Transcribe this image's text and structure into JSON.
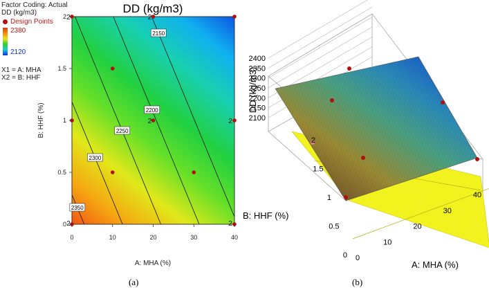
{
  "legend": {
    "factor_coding": "Factor Coding: Actual",
    "response_label": "DD (kg/m3)",
    "design_points_label": "Design Points",
    "high_value": "2380",
    "low_value": "2120",
    "x1_def": "X1 = A: MHA",
    "x2_def": "X2 = B: HHF"
  },
  "captions": {
    "left": "(a)",
    "right": "(b)"
  },
  "colors": {
    "high": "#e8401a",
    "mid": "#22d322",
    "low": "#1060e8",
    "point": "#b01010"
  },
  "chart_data": [
    {
      "type": "contour",
      "title": "DD (kg/m3)",
      "xlabel": "A: MHA (%)",
      "ylabel": "B: HHF (%)",
      "xlim": [
        0,
        40
      ],
      "ylim": [
        0,
        2
      ],
      "x_ticks": [
        "0",
        "10",
        "20",
        "30",
        "40"
      ],
      "y_ticks": [
        "0",
        "0.5",
        "1",
        "1.5",
        "2"
      ],
      "response_range": [
        2120,
        2380
      ],
      "contour_levels": [
        {
          "value": 2150,
          "label": "2150"
        },
        {
          "value": 2200,
          "label": "2200"
        },
        {
          "value": 2250,
          "label": "2250"
        },
        {
          "value": 2300,
          "label": "2300"
        },
        {
          "value": 2350,
          "label": "2350"
        }
      ],
      "design_points": [
        {
          "x": 0,
          "y": 0,
          "count": "2"
        },
        {
          "x": 40,
          "y": 0,
          "count": "2"
        },
        {
          "x": 0,
          "y": 2,
          "count": "2"
        },
        {
          "x": 40,
          "y": 2,
          "count": ""
        },
        {
          "x": 20,
          "y": 2,
          "count": "2"
        },
        {
          "x": 0,
          "y": 1,
          "count": ""
        },
        {
          "x": 40,
          "y": 1,
          "count": "2"
        },
        {
          "x": 20,
          "y": 1,
          "count": "2"
        },
        {
          "x": 10,
          "y": 1.5,
          "count": ""
        },
        {
          "x": 10,
          "y": 0.5,
          "count": ""
        },
        {
          "x": 30,
          "y": 0.5,
          "count": ""
        }
      ]
    },
    {
      "type": "surface3d",
      "zlabel": "DD (kg/m3)",
      "xlabel": "A: MHA (%)",
      "ylabel": "B: HHF (%)",
      "z_ticks": [
        "2100",
        "2150",
        "2200",
        "2250",
        "2300",
        "2350",
        "2400"
      ],
      "x_ticks": [
        "0",
        "10",
        "20",
        "30",
        "40"
      ],
      "y_ticks": [
        "0",
        "0.5",
        "1",
        "1.5",
        "2"
      ],
      "xlim": [
        0,
        40
      ],
      "ylim": [
        0,
        2
      ],
      "zlim": [
        2100,
        2400
      ]
    }
  ]
}
